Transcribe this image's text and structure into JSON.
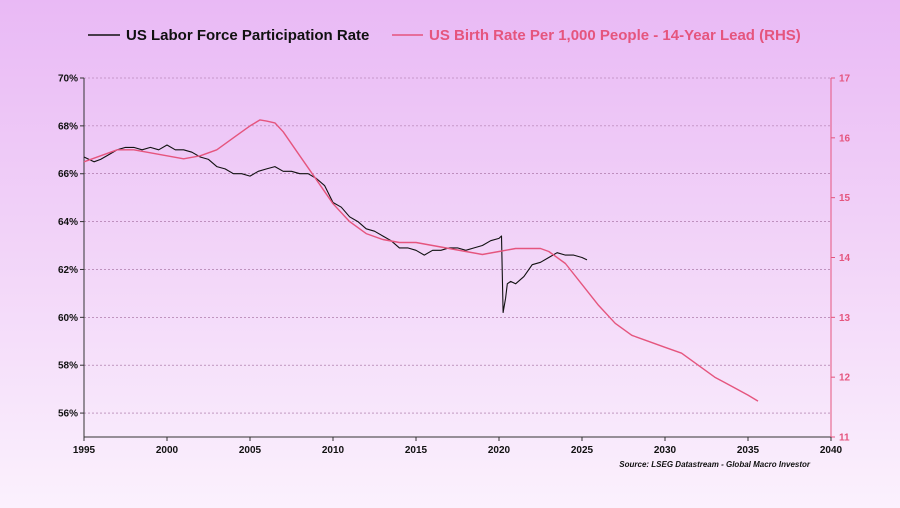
{
  "chart_data": {
    "type": "line",
    "title": "",
    "colors": {
      "lfpr": "#111111",
      "birth": "#e5557e",
      "left_axis_text": "#111111",
      "right_axis_text": "#e5557e",
      "grid": "#a06a9c"
    },
    "legend": {
      "position": "top",
      "items": [
        "US Labor Force Participation Rate",
        "US Birth Rate Per 1,000 People - 14-Year Lead (RHS)"
      ]
    },
    "x_axis": {
      "range": [
        1995,
        2040
      ],
      "ticks": [
        1995,
        2000,
        2005,
        2010,
        2015,
        2020,
        2025,
        2030,
        2035,
        2040
      ],
      "tick_labels": [
        "1995",
        "2000",
        "2005",
        "2010",
        "2015",
        "2020",
        "2025",
        "2030",
        "2035",
        "2040"
      ]
    },
    "y_axis_left": {
      "range": [
        55,
        70
      ],
      "ticks": [
        56,
        58,
        60,
        62,
        64,
        66,
        68,
        70
      ],
      "tick_labels": [
        "56%",
        "58%",
        "60%",
        "62%",
        "64%",
        "66%",
        "68%",
        "70%"
      ]
    },
    "y_axis_right": {
      "range": [
        11,
        17
      ],
      "ticks": [
        11,
        12,
        13,
        14,
        15,
        16,
        17
      ],
      "tick_labels": [
        "11",
        "12",
        "13",
        "14",
        "15",
        "16",
        "17"
      ]
    },
    "grid": true,
    "source": "Source: LSEG Datastream - Global Macro Investor",
    "series": [
      {
        "name": "US Labor Force Participation Rate",
        "axis": "left",
        "x": [
          1995.0,
          1995.3,
          1995.6,
          1996.0,
          1996.5,
          1997.0,
          1997.5,
          1998.0,
          1998.5,
          1999.0,
          1999.5,
          2000.0,
          2000.5,
          2001.0,
          2001.5,
          2002.0,
          2002.5,
          2003.0,
          2003.5,
          2004.0,
          2004.5,
          2005.0,
          2005.5,
          2006.0,
          2006.5,
          2007.0,
          2007.5,
          2008.0,
          2008.5,
          2009.0,
          2009.5,
          2010.0,
          2010.5,
          2011.0,
          2011.5,
          2012.0,
          2012.5,
          2013.0,
          2013.5,
          2014.0,
          2014.5,
          2015.0,
          2015.5,
          2016.0,
          2016.5,
          2017.0,
          2017.5,
          2018.0,
          2018.5,
          2019.0,
          2019.5,
          2020.0,
          2020.15,
          2020.25,
          2020.4,
          2020.5,
          2020.7,
          2021.0,
          2021.5,
          2022.0,
          2022.5,
          2023.0,
          2023.5,
          2024.0,
          2024.5,
          2025.0,
          2025.3
        ],
        "y": [
          66.7,
          66.6,
          66.5,
          66.6,
          66.8,
          67.0,
          67.1,
          67.1,
          67.0,
          67.1,
          67.0,
          67.2,
          67.0,
          67.0,
          66.9,
          66.7,
          66.6,
          66.3,
          66.2,
          66.0,
          66.0,
          65.9,
          66.1,
          66.2,
          66.3,
          66.1,
          66.1,
          66.0,
          66.0,
          65.8,
          65.5,
          64.8,
          64.6,
          64.2,
          64.0,
          63.7,
          63.6,
          63.4,
          63.2,
          62.9,
          62.9,
          62.8,
          62.6,
          62.8,
          62.8,
          62.9,
          62.9,
          62.8,
          62.9,
          63.0,
          63.2,
          63.3,
          63.4,
          60.2,
          60.8,
          61.4,
          61.5,
          61.4,
          61.7,
          62.2,
          62.3,
          62.5,
          62.7,
          62.6,
          62.6,
          62.5,
          62.4
        ]
      },
      {
        "name": "US Birth Rate Per 1,000 People - 14-Year Lead (RHS)",
        "axis": "right",
        "x": [
          1995.0,
          1996.0,
          1997.0,
          1998.0,
          1999.0,
          2000.0,
          2001.0,
          2002.0,
          2003.0,
          2004.0,
          2005.0,
          2005.6,
          2006.0,
          2006.5,
          2007.0,
          2008.0,
          2009.0,
          2010.0,
          2011.0,
          2012.0,
          2013.0,
          2014.0,
          2015.0,
          2016.0,
          2017.0,
          2018.0,
          2019.0,
          2020.0,
          2021.0,
          2022.0,
          2022.5,
          2023.0,
          2024.0,
          2025.0,
          2026.0,
          2027.0,
          2028.0,
          2029.0,
          2030.0,
          2031.0,
          2032.0,
          2033.0,
          2034.0,
          2035.0,
          2035.6
        ],
        "y": [
          15.6,
          15.7,
          15.8,
          15.8,
          15.75,
          15.7,
          15.65,
          15.7,
          15.8,
          16.0,
          16.2,
          16.3,
          16.28,
          16.25,
          16.1,
          15.7,
          15.3,
          14.9,
          14.6,
          14.4,
          14.3,
          14.25,
          14.25,
          14.2,
          14.15,
          14.1,
          14.05,
          14.1,
          14.15,
          14.15,
          14.15,
          14.1,
          13.9,
          13.55,
          13.2,
          12.9,
          12.7,
          12.6,
          12.5,
          12.4,
          12.2,
          12.0,
          11.85,
          11.7,
          11.6
        ]
      }
    ]
  }
}
